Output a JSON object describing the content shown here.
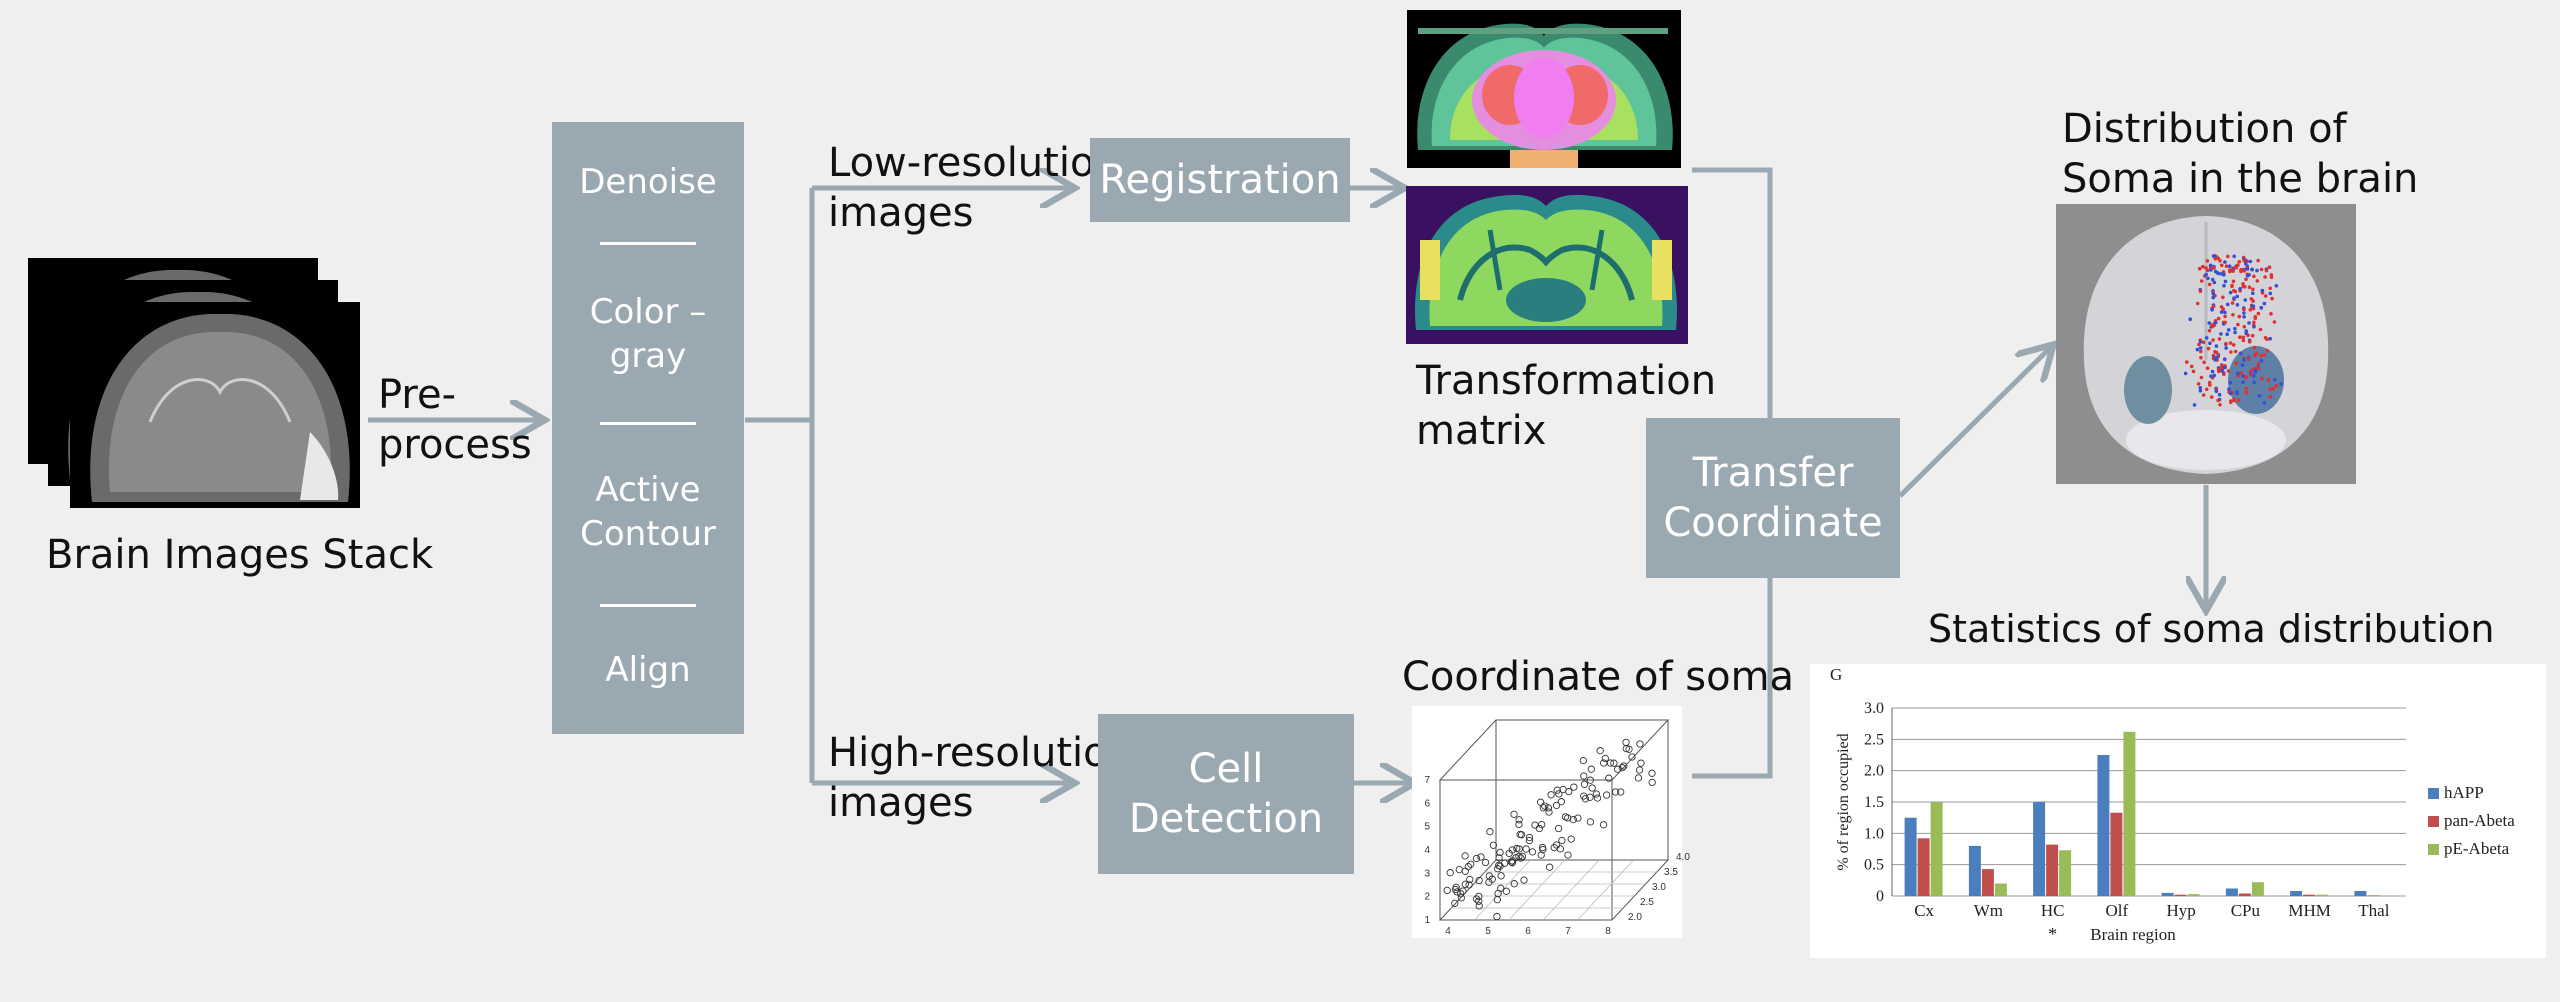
{
  "labels": {
    "stack_caption": "Brain Images Stack",
    "preprocess": "Pre-\nprocess",
    "low_res": "Low-resolution\nimages",
    "high_res": "High-resolution\nimages",
    "transformation": "Transformation\nmatrix",
    "coordinate_soma": "Coordinate of soma",
    "distribution": "Distribution of\nSoma in the brain",
    "statistics": "Statistics of soma distribution"
  },
  "preprocess_steps": [
    "Denoise",
    "Color –\ngray",
    "Active\nContour",
    "Align"
  ],
  "boxes": {
    "registration": "Registration",
    "cell_detection": "Cell\nDetection",
    "transfer": "Transfer\nCoordinate"
  },
  "colors": {
    "box": "#9aa8b1",
    "arrow": "#9aa8b1"
  },
  "chart_data": {
    "type": "bar",
    "panel_letter": "G",
    "categories": [
      "Cx",
      "Wm",
      "HC",
      "Olf",
      "Hyp",
      "CPu",
      "MHM",
      "Thal"
    ],
    "series": [
      {
        "name": "hAPP",
        "color": "#4a7ebf",
        "values": [
          1.25,
          0.8,
          1.5,
          2.25,
          0.05,
          0.12,
          0.08,
          0.08
        ]
      },
      {
        "name": "pan-Abeta",
        "color": "#c0504d",
        "values": [
          0.92,
          0.43,
          0.82,
          1.33,
          0.02,
          0.04,
          0.02,
          0.01
        ]
      },
      {
        "name": "pE-Abeta",
        "color": "#9bbb59",
        "values": [
          1.5,
          0.2,
          0.73,
          2.62,
          0.03,
          0.22,
          0.02,
          0.0
        ]
      }
    ],
    "ylabel": "% of region occupied",
    "xlabel": "Brain region",
    "ylim": [
      0,
      3.0
    ],
    "yticks": [
      "0",
      "0.5",
      "1.0",
      "1.5",
      "2.0",
      "2.5",
      "3.0"
    ],
    "annotation": "*",
    "legend_position": "right"
  },
  "scatter3d": {
    "x_ticks": [
      "4",
      "5",
      "6",
      "7",
      "8"
    ],
    "y_ticks": [
      "1",
      "2",
      "3",
      "4",
      "5",
      "6",
      "7"
    ],
    "z_ticks": [
      "2.0",
      "2.5",
      "3.0",
      "3.5",
      "4.0"
    ]
  }
}
